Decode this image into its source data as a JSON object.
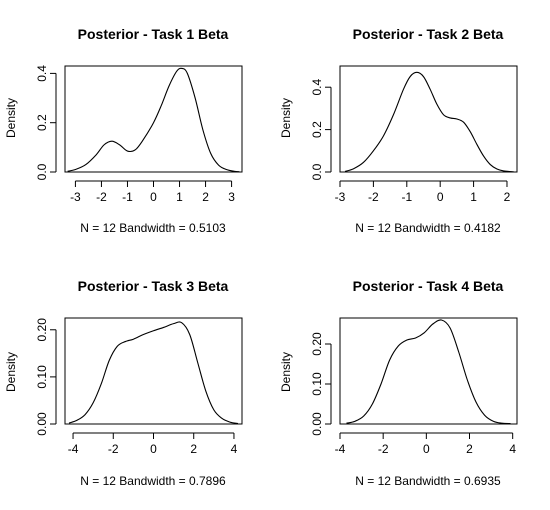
{
  "chart_data": [
    {
      "type": "line",
      "title": "Posterior - Task 1 Beta",
      "xlabel": "N = 12   Bandwidth = 0.5103",
      "ylabel": "Density",
      "xlim": [
        -3.4,
        3.4
      ],
      "ylim": [
        0,
        0.43
      ],
      "xticks": [
        -3,
        -2,
        -1,
        0,
        1,
        2,
        3
      ],
      "yticks": [
        0.0,
        0.2,
        0.4
      ],
      "ytick_labels": [
        "0.0",
        "0.2",
        "0.4"
      ],
      "x": [
        -3.3,
        -3.0,
        -2.6,
        -2.2,
        -1.9,
        -1.6,
        -1.3,
        -1.0,
        -0.7,
        -0.4,
        0.0,
        0.3,
        0.6,
        0.9,
        1.1,
        1.3,
        1.6,
        1.9,
        2.2,
        2.5,
        2.8,
        3.1,
        3.3
      ],
      "y": [
        0.003,
        0.01,
        0.03,
        0.07,
        0.11,
        0.125,
        0.11,
        0.085,
        0.09,
        0.13,
        0.2,
        0.27,
        0.35,
        0.41,
        0.42,
        0.4,
        0.3,
        0.17,
        0.075,
        0.028,
        0.01,
        0.003,
        0.001
      ]
    },
    {
      "type": "line",
      "title": "Posterior - Task 2 Beta",
      "xlabel": "N = 12   Bandwidth = 0.4182",
      "ylabel": "Density",
      "xlim": [
        -3.0,
        2.3
      ],
      "ylim": [
        0,
        0.5
      ],
      "xticks": [
        -3,
        -2,
        -1,
        0,
        1,
        2
      ],
      "yticks": [
        0.0,
        0.2,
        0.4
      ],
      "ytick_labels": [
        "0.0",
        "0.2",
        "0.4"
      ],
      "x": [
        -2.85,
        -2.6,
        -2.3,
        -2.0,
        -1.7,
        -1.4,
        -1.1,
        -0.9,
        -0.7,
        -0.5,
        -0.3,
        -0.1,
        0.1,
        0.3,
        0.5,
        0.7,
        0.9,
        1.1,
        1.3,
        1.5,
        1.7,
        1.9,
        2.2
      ],
      "y": [
        0.003,
        0.015,
        0.045,
        0.1,
        0.17,
        0.27,
        0.39,
        0.45,
        0.47,
        0.45,
        0.39,
        0.32,
        0.27,
        0.255,
        0.25,
        0.235,
        0.19,
        0.13,
        0.075,
        0.035,
        0.014,
        0.005,
        0.001
      ]
    },
    {
      "type": "line",
      "title": "Posterior - Task 3 Beta",
      "xlabel": "N = 12   Bandwidth = 0.7896",
      "ylabel": "Density",
      "xlim": [
        -4.4,
        4.4
      ],
      "ylim": [
        0,
        0.225
      ],
      "xticks": [
        -4,
        -2,
        0,
        2,
        4
      ],
      "yticks": [
        0.0,
        0.1,
        0.2
      ],
      "ytick_labels": [
        "0.00",
        "0.10",
        "0.20"
      ],
      "x": [
        -4.2,
        -3.8,
        -3.4,
        -3.0,
        -2.6,
        -2.2,
        -1.8,
        -1.4,
        -1.0,
        -0.5,
        0.0,
        0.5,
        1.0,
        1.4,
        1.8,
        2.2,
        2.6,
        3.0,
        3.4,
        3.8,
        4.2
      ],
      "y": [
        0.002,
        0.008,
        0.02,
        0.045,
        0.085,
        0.135,
        0.165,
        0.175,
        0.18,
        0.19,
        0.198,
        0.205,
        0.213,
        0.215,
        0.19,
        0.13,
        0.07,
        0.03,
        0.012,
        0.004,
        0.001
      ]
    },
    {
      "type": "line",
      "title": "Posterior - Task 4 Beta",
      "xlabel": "N = 12   Bandwidth = 0.6935",
      "ylabel": "Density",
      "xlim": [
        -4.0,
        4.2
      ],
      "ylim": [
        0,
        0.265
      ],
      "xticks": [
        -4,
        -2,
        0,
        2,
        4
      ],
      "yticks": [
        0.0,
        0.1,
        0.2
      ],
      "ytick_labels": [
        "0.00",
        "0.10",
        "0.20"
      ],
      "x": [
        -3.7,
        -3.3,
        -2.9,
        -2.5,
        -2.1,
        -1.7,
        -1.3,
        -0.9,
        -0.5,
        -0.1,
        0.3,
        0.7,
        1.1,
        1.5,
        1.9,
        2.3,
        2.7,
        3.1,
        3.5,
        3.9
      ],
      "y": [
        0.002,
        0.007,
        0.02,
        0.05,
        0.1,
        0.16,
        0.195,
        0.21,
        0.215,
        0.228,
        0.25,
        0.26,
        0.24,
        0.18,
        0.11,
        0.055,
        0.022,
        0.007,
        0.002,
        0.001
      ]
    }
  ]
}
